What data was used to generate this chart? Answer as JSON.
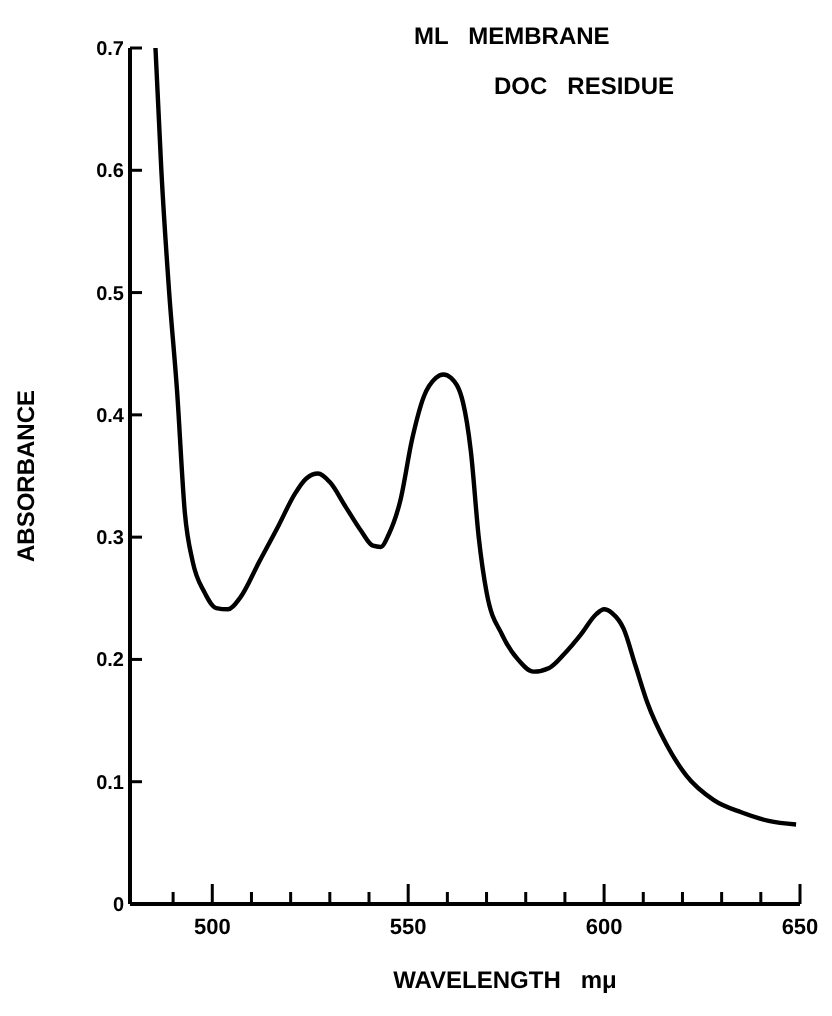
{
  "chart_data": {
    "type": "line",
    "title": "ML   MEMBRANE",
    "subtitle": "DOC   RESIDUE",
    "xlabel": "WAVELENGTH   mμ",
    "ylabel": "ABSORBANCE",
    "xlim": [
      479,
      650
    ],
    "ylim": [
      0,
      0.7
    ],
    "xticks": [
      {
        "value": 490,
        "label": null
      },
      500,
      {
        "value": 510,
        "label": null
      },
      {
        "value": 520,
        "label": null
      },
      {
        "value": 530,
        "label": null
      },
      {
        "value": 540,
        "label": null
      },
      550,
      {
        "value": 560,
        "label": null
      },
      {
        "value": 570,
        "label": null
      },
      {
        "value": 580,
        "label": null
      },
      {
        "value": 590,
        "label": null
      },
      600,
      {
        "value": 610,
        "label": null
      },
      {
        "value": 620,
        "label": null
      },
      {
        "value": 630,
        "label": null
      },
      {
        "value": 640,
        "label": null
      },
      650
    ],
    "yticks": [
      0,
      0.1,
      0.2,
      0.3,
      0.4,
      0.5,
      0.6,
      0.7
    ],
    "grid": false,
    "marker": "none",
    "line_style": "solid",
    "series": [
      {
        "color": "#000000",
        "x": [
          485.5,
          487,
          489,
          491,
          493,
          495,
          498,
          501,
          504,
          507,
          512,
          517,
          521,
          524,
          527,
          530,
          534,
          538,
          541,
          543,
          545,
          548,
          551,
          554,
          557,
          559,
          561,
          564,
          566,
          568,
          570,
          574,
          578,
          582,
          586,
          590,
          594,
          598,
          600,
          602,
          605,
          608,
          611,
          616,
          621,
          628,
          635,
          642,
          649
        ],
        "values": [
          0.7,
          0.6,
          0.5,
          0.42,
          0.32,
          0.28,
          0.255,
          0.242,
          0.241,
          0.25,
          0.28,
          0.31,
          0.335,
          0.348,
          0.352,
          0.345,
          0.325,
          0.305,
          0.293,
          0.292,
          0.302,
          0.33,
          0.38,
          0.415,
          0.43,
          0.433,
          0.43,
          0.41,
          0.37,
          0.3,
          0.255,
          0.22,
          0.2,
          0.19,
          0.193,
          0.205,
          0.22,
          0.237,
          0.241,
          0.238,
          0.225,
          0.195,
          0.165,
          0.13,
          0.105,
          0.085,
          0.075,
          0.068,
          0.065
        ]
      }
    ]
  }
}
